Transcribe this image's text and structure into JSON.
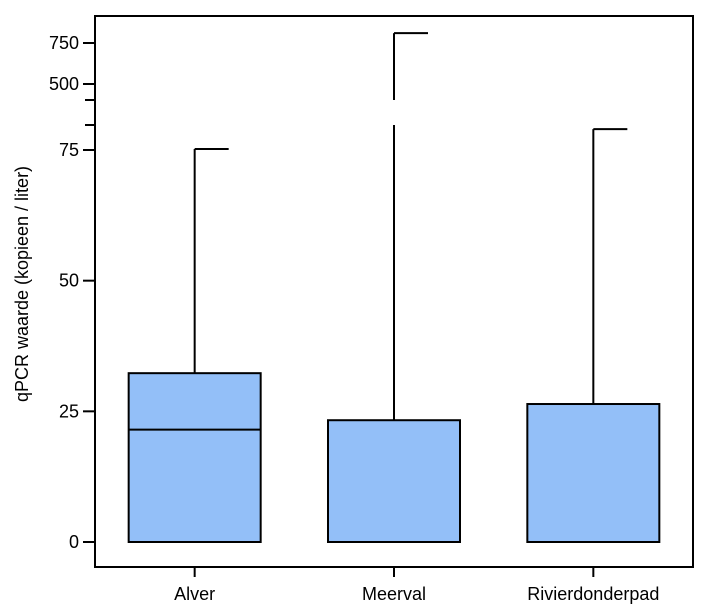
{
  "chart_data": {
    "type": "boxplot",
    "ylabel": "qPCR waarde (kopieen / liter)",
    "y_axis_break": true,
    "y_lower_ticks": [
      0,
      25,
      50,
      75
    ],
    "y_upper_ticks": [
      500,
      750
    ],
    "ylim_lower": [
      0,
      80
    ],
    "ylim_upper": [
      400,
      820
    ],
    "box_color": "#93bff8",
    "categories": [
      "Alver",
      "Meerval",
      "Rivierdonderpad"
    ],
    "boxes": [
      {
        "category": "Alver",
        "q1": 0,
        "median": 21.5,
        "q3": 32.3,
        "whisker_low": 0,
        "whisker_high": 75.2
      },
      {
        "category": "Meerval",
        "q1": 0,
        "median": 0,
        "q3": 23.3,
        "whisker_low": 0,
        "whisker_high": 810
      },
      {
        "category": "Rivierdonderpad",
        "q1": 0,
        "median": 0,
        "q3": 26.4,
        "whisker_low": 0,
        "whisker_high": 79
      }
    ]
  }
}
